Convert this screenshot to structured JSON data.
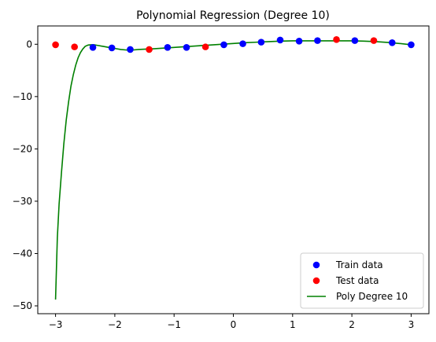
{
  "chart_data": {
    "type": "scatter",
    "title": "Polynomial Regression (Degree 10)",
    "xlabel": "",
    "ylabel": "",
    "xlim": [
      -3.3,
      3.3
    ],
    "ylim": [
      -51.5,
      3.5
    ],
    "xticks": [
      -3,
      -2,
      -1,
      0,
      1,
      2,
      3
    ],
    "xtick_labels": [
      "−3",
      "−2",
      "−1",
      "0",
      "1",
      "2",
      "3"
    ],
    "yticks": [
      -50,
      -40,
      -30,
      -20,
      -10,
      0
    ],
    "ytick_labels": [
      "−50",
      "−40",
      "−30",
      "−20",
      "−10",
      "0"
    ],
    "grid": false,
    "legend_position": "lower-right",
    "series": [
      {
        "name": "Train data",
        "kind": "scatter",
        "color": "#0000ff",
        "x": [
          -2.37,
          -2.05,
          -1.74,
          -1.11,
          -0.79,
          -0.16,
          0.16,
          0.47,
          0.79,
          1.11,
          1.42,
          2.05,
          2.68,
          3.0
        ],
        "y": [
          -0.6,
          -0.7,
          -1.0,
          -0.6,
          -0.6,
          -0.1,
          0.1,
          0.4,
          0.8,
          0.6,
          0.7,
          0.7,
          0.3,
          -0.1
        ]
      },
      {
        "name": "Test data",
        "kind": "scatter",
        "color": "#ff0000",
        "x": [
          -3.0,
          -2.68,
          -1.42,
          -0.47,
          1.74,
          2.37
        ],
        "y": [
          -0.1,
          -0.5,
          -1.0,
          -0.5,
          0.9,
          0.7
        ]
      },
      {
        "name": "Poly Degree 10",
        "kind": "line",
        "color": "#008000",
        "x": [
          -3.0,
          -2.97,
          -2.94,
          -2.9,
          -2.86,
          -2.82,
          -2.78,
          -2.74,
          -2.7,
          -2.66,
          -2.62,
          -2.58,
          -2.54,
          -2.5,
          -2.45,
          -2.4,
          -2.35,
          -2.3,
          -2.2,
          -2.1,
          -2.0,
          -1.9,
          -1.8,
          -1.7,
          -1.6,
          -1.5,
          -1.4,
          -1.2,
          -1.0,
          -0.8,
          -0.6,
          -0.4,
          -0.2,
          0.0,
          0.2,
          0.4,
          0.6,
          0.8,
          1.0,
          1.2,
          1.4,
          1.6,
          1.8,
          2.0,
          2.2,
          2.4,
          2.6,
          2.8,
          3.0
        ],
        "y": [
          -48.8,
          -37.0,
          -30.5,
          -24.5,
          -19.0,
          -14.5,
          -11.0,
          -8.0,
          -5.8,
          -4.0,
          -2.6,
          -1.6,
          -0.9,
          -0.4,
          -0.15,
          -0.1,
          -0.1,
          -0.2,
          -0.4,
          -0.6,
          -0.8,
          -1.0,
          -1.1,
          -1.1,
          -1.0,
          -0.95,
          -0.9,
          -0.75,
          -0.6,
          -0.45,
          -0.3,
          -0.15,
          0.0,
          0.15,
          0.3,
          0.4,
          0.5,
          0.6,
          0.65,
          0.65,
          0.65,
          0.65,
          0.65,
          0.65,
          0.6,
          0.5,
          0.35,
          0.15,
          -0.1
        ]
      }
    ]
  }
}
